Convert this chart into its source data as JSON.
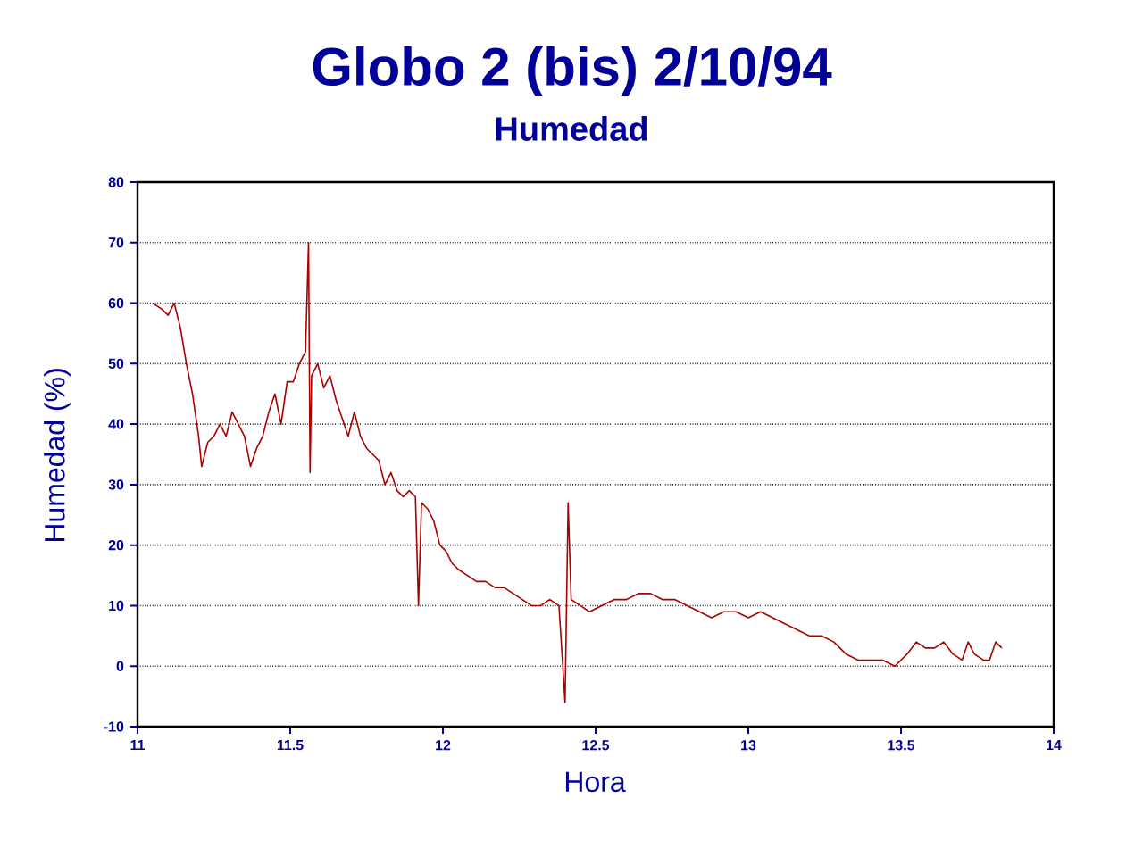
{
  "chart_data": {
    "type": "line",
    "title": "Globo 2 (bis) 2/10/94",
    "subtitle": "Humedad",
    "xlabel": "Hora",
    "ylabel": "Humedad (%)",
    "xlim": [
      11,
      14
    ],
    "xticks": [
      11,
      11.5,
      12,
      12.5,
      13,
      13.5,
      14
    ],
    "ylim": [
      -10,
      80
    ],
    "yticks": [
      -10,
      0,
      10,
      20,
      30,
      40,
      50,
      60,
      70,
      80
    ],
    "grid": "y",
    "marker": "none",
    "line_style": "solid",
    "series": [
      {
        "color": "#aa0000",
        "x": [
          11.05,
          11.08,
          11.1,
          11.12,
          11.14,
          11.16,
          11.18,
          11.2,
          11.21,
          11.23,
          11.25,
          11.27,
          11.29,
          11.31,
          11.33,
          11.35,
          11.37,
          11.39,
          11.41,
          11.43,
          11.45,
          11.47,
          11.49,
          11.51,
          11.53,
          11.55,
          11.56,
          11.565,
          11.57,
          11.59,
          11.61,
          11.63,
          11.65,
          11.67,
          11.69,
          11.71,
          11.73,
          11.75,
          11.77,
          11.79,
          11.81,
          11.83,
          11.85,
          11.87,
          11.89,
          11.91,
          11.92,
          11.93,
          11.95,
          11.97,
          11.99,
          12.01,
          12.03,
          12.05,
          12.08,
          12.11,
          12.14,
          12.17,
          12.2,
          12.23,
          12.26,
          12.29,
          12.32,
          12.35,
          12.38,
          12.4,
          12.41,
          12.42,
          12.45,
          12.48,
          12.52,
          12.56,
          12.6,
          12.64,
          12.68,
          12.72,
          12.76,
          12.8,
          12.84,
          12.88,
          12.92,
          12.96,
          13,
          13.04,
          13.08,
          13.12,
          13.16,
          13.2,
          13.24,
          13.28,
          13.32,
          13.36,
          13.4,
          13.44,
          13.48,
          13.52,
          13.55,
          13.58,
          13.61,
          13.64,
          13.67,
          13.7,
          13.72,
          13.74,
          13.77,
          13.79,
          13.81,
          13.83
        ],
        "values": [
          60,
          59,
          58,
          60,
          56,
          50,
          45,
          38,
          33,
          37,
          38,
          40,
          38,
          42,
          40,
          38,
          33,
          36,
          38,
          42,
          45,
          40,
          47,
          47,
          50,
          52,
          70,
          32,
          48,
          50,
          46,
          48,
          44,
          41,
          38,
          42,
          38,
          36,
          35,
          34,
          30,
          32,
          29,
          28,
          29,
          28,
          10,
          27,
          26,
          24,
          20,
          19,
          17,
          16,
          15,
          14,
          14,
          13,
          13,
          12,
          11,
          10,
          10,
          11,
          10,
          -6,
          27,
          11,
          10,
          9,
          10,
          11,
          11,
          12,
          12,
          11,
          11,
          10,
          9,
          8,
          9,
          9,
          8,
          9,
          8,
          7,
          6,
          5,
          5,
          4,
          2,
          1,
          1,
          1,
          0,
          2,
          4,
          3,
          3,
          4,
          2,
          1,
          4,
          2,
          1,
          1,
          4,
          3
        ]
      }
    ]
  }
}
